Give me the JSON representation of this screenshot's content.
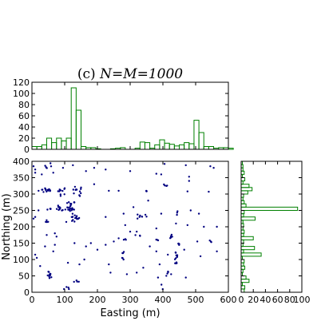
{
  "chart_data": {
    "title": "(c) N=M=1000",
    "title_prefix": "(c) ",
    "title_math": "N=M=1000",
    "colors": {
      "points": "#000080",
      "histogram": "#008000",
      "frame": "#000000"
    },
    "scatter": {
      "type": "scatter",
      "xlabel": "Easting (m)",
      "ylabel": "Northing (m)",
      "xlim": [
        0,
        600
      ],
      "ylim": [
        0,
        400
      ],
      "xticks": [
        "0",
        "100",
        "200",
        "300",
        "400",
        "500",
        "600"
      ],
      "yticks": [
        "0",
        "50",
        "100",
        "150",
        "200",
        "250",
        "300",
        "350",
        "400"
      ],
      "clusters": [
        {
          "x": 45,
          "y": 312,
          "n": 14,
          "sx": 12,
          "sy": 4
        },
        {
          "x": 90,
          "y": 310,
          "n": 10,
          "sx": 8,
          "sy": 6
        },
        {
          "x": 133,
          "y": 310,
          "n": 6,
          "sx": 4,
          "sy": 6
        },
        {
          "x": 148,
          "y": 300,
          "n": 5,
          "sx": 2,
          "sy": 10
        },
        {
          "x": 120,
          "y": 260,
          "n": 22,
          "sx": 6,
          "sy": 10
        },
        {
          "x": 130,
          "y": 225,
          "n": 14,
          "sx": 8,
          "sy": 6
        },
        {
          "x": 85,
          "y": 255,
          "n": 12,
          "sx": 8,
          "sy": 4
        },
        {
          "x": 50,
          "y": 255,
          "n": 4,
          "sx": 6,
          "sy": 2
        },
        {
          "x": 45,
          "y": 210,
          "n": 4,
          "sx": 3,
          "sy": 6
        },
        {
          "x": 55,
          "y": 50,
          "n": 10,
          "sx": 4,
          "sy": 6
        },
        {
          "x": 105,
          "y": 12,
          "n": 4,
          "sx": 6,
          "sy": 3
        },
        {
          "x": 140,
          "y": 35,
          "n": 4,
          "sx": 6,
          "sy": 2
        },
        {
          "x": 335,
          "y": 232,
          "n": 8,
          "sx": 8,
          "sy": 5
        },
        {
          "x": 348,
          "y": 310,
          "n": 3,
          "sx": 2,
          "sy": 5
        },
        {
          "x": 410,
          "y": 325,
          "n": 4,
          "sx": 3,
          "sy": 4
        },
        {
          "x": 440,
          "y": 240,
          "n": 3,
          "sx": 3,
          "sy": 5
        },
        {
          "x": 422,
          "y": 172,
          "n": 6,
          "sx": 6,
          "sy": 4
        },
        {
          "x": 440,
          "y": 105,
          "n": 14,
          "sx": 3,
          "sy": 15
        },
        {
          "x": 415,
          "y": 60,
          "n": 4,
          "sx": 5,
          "sy": 8
        },
        {
          "x": 450,
          "y": 145,
          "n": 4,
          "sx": 3,
          "sy": 4
        },
        {
          "x": 280,
          "y": 115,
          "n": 6,
          "sx": 2,
          "sy": 12
        },
        {
          "x": 285,
          "y": 163,
          "n": 3,
          "sx": 4,
          "sy": 2
        },
        {
          "x": 380,
          "y": 160,
          "n": 3,
          "sx": 5,
          "sy": 4
        },
        {
          "x": 45,
          "y": 385,
          "n": 6,
          "sx": 8,
          "sy": 6
        },
        {
          "x": 330,
          "y": 170,
          "n": 3,
          "sx": 4,
          "sy": 4
        },
        {
          "x": 395,
          "y": 20,
          "n": 2,
          "sx": 5,
          "sy": 5
        },
        {
          "x": 545,
          "y": 155,
          "n": 3,
          "sx": 4,
          "sy": 6
        }
      ],
      "points": [
        [
          10,
          365
        ],
        [
          10,
          375
        ],
        [
          5,
          385
        ],
        [
          30,
          360
        ],
        [
          65,
          365
        ],
        [
          95,
          380
        ],
        [
          125,
          388
        ],
        [
          165,
          370
        ],
        [
          190,
          380
        ],
        [
          225,
          375
        ],
        [
          300,
          370
        ],
        [
          380,
          362
        ],
        [
          395,
          360
        ],
        [
          405,
          392
        ],
        [
          470,
          388
        ],
        [
          545,
          385
        ],
        [
          555,
          380
        ],
        [
          480,
          353
        ],
        [
          480,
          340
        ],
        [
          475,
          308
        ],
        [
          540,
          307
        ],
        [
          485,
          250
        ],
        [
          440,
          210
        ],
        [
          475,
          205
        ],
        [
          565,
          200
        ],
        [
          525,
          200
        ],
        [
          565,
          125
        ],
        [
          515,
          110
        ],
        [
          470,
          45
        ],
        [
          425,
          55
        ],
        [
          465,
          130
        ],
        [
          385,
          45
        ],
        [
          390,
          85
        ],
        [
          415,
          115
        ],
        [
          25,
          80
        ],
        [
          15,
          105
        ],
        [
          10,
          115
        ],
        [
          65,
          125
        ],
        [
          70,
          145
        ],
        [
          75,
          170
        ],
        [
          70,
          180
        ],
        [
          105,
          215
        ],
        [
          180,
          150
        ],
        [
          165,
          140
        ],
        [
          200,
          130
        ],
        [
          235,
          85
        ],
        [
          240,
          60
        ],
        [
          290,
          55
        ],
        [
          340,
          75
        ],
        [
          300,
          185
        ],
        [
          320,
          185
        ],
        [
          310,
          260
        ],
        [
          280,
          240
        ],
        [
          285,
          205
        ],
        [
          380,
          195
        ],
        [
          395,
          240
        ],
        [
          225,
          230
        ],
        [
          225,
          145
        ],
        [
          130,
          150
        ],
        [
          20,
          250
        ],
        [
          10,
          230
        ],
        [
          5,
          225
        ],
        [
          190,
          330
        ],
        [
          150,
          320
        ],
        [
          160,
          100
        ],
        [
          145,
          85
        ],
        [
          250,
          155
        ],
        [
          265,
          165
        ],
        [
          235,
          310
        ],
        [
          265,
          310
        ],
        [
          360,
          140
        ],
        [
          355,
          280
        ],
        [
          510,
          240
        ],
        [
          505,
          155
        ],
        [
          320,
          60
        ],
        [
          380,
          125
        ],
        [
          45,
          175
        ],
        [
          40,
          140
        ],
        [
          110,
          90
        ]
      ]
    },
    "x_histogram": {
      "type": "bar",
      "ylim": [
        0,
        120
      ],
      "yticks": [
        "0",
        "20",
        "40",
        "60",
        "80",
        "100",
        "120"
      ],
      "bin_width": 15,
      "start": 0,
      "counts": [
        5,
        5,
        8,
        20,
        12,
        20,
        15,
        20,
        110,
        70,
        5,
        3,
        3,
        1,
        0,
        0,
        1,
        2,
        3,
        0,
        0,
        2,
        13,
        12,
        2,
        8,
        17,
        11,
        9,
        6,
        8,
        12,
        10,
        52,
        30,
        5,
        5,
        2,
        3,
        3,
        2,
        0
      ]
    },
    "y_histogram": {
      "type": "bar",
      "xlim": [
        0,
        100
      ],
      "xticks": [
        "0",
        "20",
        "40",
        "60",
        "80",
        "100"
      ],
      "bin_width": 10,
      "start": 0,
      "counts": [
        5,
        6,
        2,
        13,
        8,
        2,
        3,
        6,
        4,
        5,
        2,
        33,
        4,
        22,
        3,
        4,
        20,
        4,
        5,
        3,
        4,
        3,
        23,
        4,
        5,
        93,
        8,
        5,
        3,
        4,
        11,
        18,
        13,
        3,
        6,
        2,
        5,
        3,
        3,
        2
      ]
    }
  }
}
